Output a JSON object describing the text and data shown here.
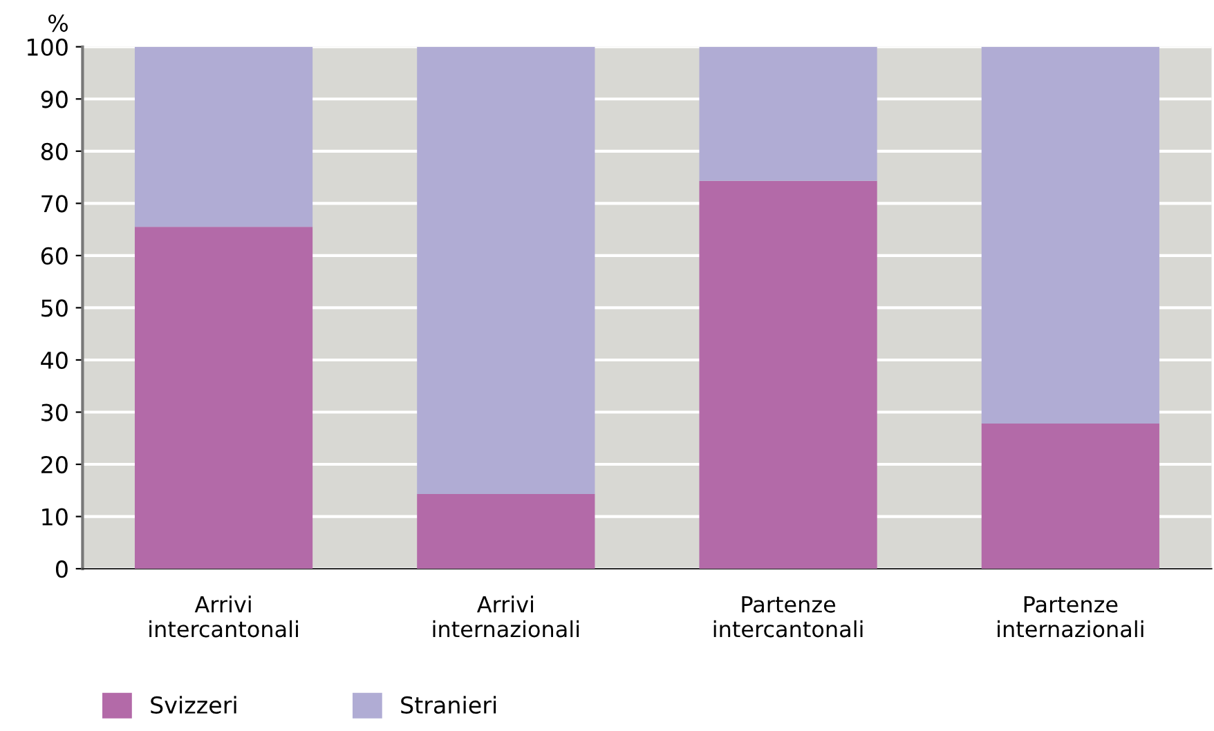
{
  "chart_data": {
    "type": "bar",
    "stacked": true,
    "ylabel": "%",
    "categories": [
      "Arrivi\nintercantonali",
      "Arrivi\ninternazionali",
      "Partenze\nintercantonali",
      "Partenze\ninternazionali"
    ],
    "series": [
      {
        "name": "Svizzeri",
        "color": "#b36aa8",
        "values": [
          65.5,
          14.3,
          74.3,
          27.8
        ]
      },
      {
        "name": "Stranieri",
        "color": "#b0acd4",
        "values": [
          34.5,
          85.7,
          25.7,
          72.2
        ]
      }
    ],
    "ylim": [
      0,
      100
    ],
    "yticks": [
      0,
      10,
      20,
      30,
      40,
      50,
      60,
      70,
      80,
      90,
      100
    ],
    "grid": "y",
    "legend": "bottom left"
  }
}
